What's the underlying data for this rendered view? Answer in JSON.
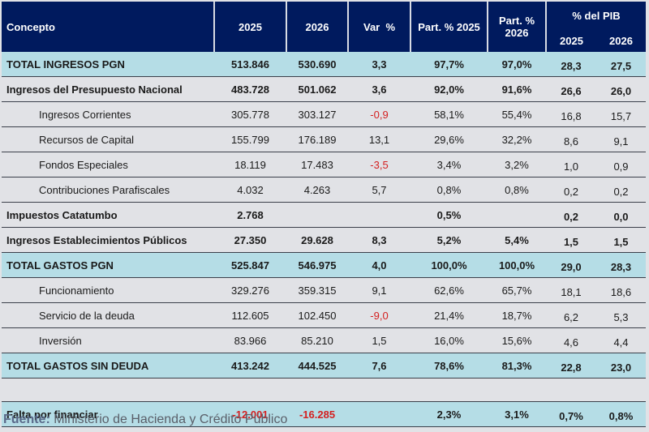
{
  "header": {
    "concept": "Concepto",
    "y2025": "2025",
    "y2026": "2026",
    "var": "Var  %",
    "part2025": "Part. % 2025",
    "part2026": "Part. % 2026",
    "pib": "% del PIB",
    "pib2025": "2025",
    "pib2026": "2026"
  },
  "rows": [
    {
      "concept": "TOTAL INGRESOS PGN",
      "v2025": "513.846",
      "v2026": "530.690",
      "var": "3,3",
      "p2025": "97,7%",
      "p2026": "97,0%",
      "pib2025": "28,3",
      "pib2026": "27,5"
    },
    {
      "concept": "Ingresos del Presupuesto Nacional",
      "v2025": "483.728",
      "v2026": "501.062",
      "var": "3,6",
      "p2025": "92,0%",
      "p2026": "91,6%",
      "pib2025": "26,6",
      "pib2026": "26,0"
    },
    {
      "concept": "Ingresos Corrientes",
      "v2025": "305.778",
      "v2026": "303.127",
      "var": "-0,9",
      "p2025": "58,1%",
      "p2026": "55,4%",
      "pib2025": "16,8",
      "pib2026": "15,7"
    },
    {
      "concept": "Recursos de Capital",
      "v2025": "155.799",
      "v2026": "176.189",
      "var": "13,1",
      "p2025": "29,6%",
      "p2026": "32,2%",
      "pib2025": "8,6",
      "pib2026": "9,1"
    },
    {
      "concept": "Fondos Especiales",
      "v2025": "18.119",
      "v2026": "17.483",
      "var": "-3,5",
      "p2025": "3,4%",
      "p2026": "3,2%",
      "pib2025": "1,0",
      "pib2026": "0,9"
    },
    {
      "concept": "Contribuciones Parafiscales",
      "v2025": "4.032",
      "v2026": "4.263",
      "var": "5,7",
      "p2025": "0,8%",
      "p2026": "0,8%",
      "pib2025": "0,2",
      "pib2026": "0,2"
    },
    {
      "concept": "Impuestos Catatumbo",
      "v2025": "2.768",
      "v2026": "",
      "var": "",
      "p2025": "0,5%",
      "p2026": "",
      "pib2025": "0,2",
      "pib2026": "0,0"
    },
    {
      "concept": "Ingresos Establecimientos Públicos",
      "v2025": "27.350",
      "v2026": "29.628",
      "var": "8,3",
      "p2025": "5,2%",
      "p2026": "5,4%",
      "pib2025": "1,5",
      "pib2026": "1,5"
    },
    {
      "concept": "TOTAL GASTOS PGN",
      "v2025": "525.847",
      "v2026": "546.975",
      "var": "4,0",
      "p2025": "100,0%",
      "p2026": "100,0%",
      "pib2025": "29,0",
      "pib2026": "28,3"
    },
    {
      "concept": "Funcionamiento",
      "v2025": "329.276",
      "v2026": "359.315",
      "var": "9,1",
      "p2025": "62,6%",
      "p2026": "65,7%",
      "pib2025": "18,1",
      "pib2026": "18,6"
    },
    {
      "concept": "Servicio de la deuda",
      "v2025": "112.605",
      "v2026": "102.450",
      "var": "-9,0",
      "p2025": "21,4%",
      "p2026": "18,7%",
      "pib2025": "6,2",
      "pib2026": "5,3"
    },
    {
      "concept": "Inversión",
      "v2025": "83.966",
      "v2026": "85.210",
      "var": "1,5",
      "p2025": "16,0%",
      "p2026": "15,6%",
      "pib2025": "4,6",
      "pib2026": "4,4"
    },
    {
      "concept": "TOTAL GASTOS SIN DEUDA",
      "v2025": "413.242",
      "v2026": "444.525",
      "var": "7,6",
      "p2025": "78,6%",
      "p2026": "81,3%",
      "pib2025": "22,8",
      "pib2026": "23,0"
    },
    {
      "concept": "Falta por financiar",
      "v2025": "-12.001",
      "v2026": "-16.285",
      "var": "",
      "p2025": "2,3%",
      "p2026": "3,1%",
      "pib2025": "0,7%",
      "pib2026": "0,8%"
    }
  ],
  "source": {
    "label": "Fuente:",
    "text": " Ministerio de Hacienda y Crédito Público"
  },
  "colors": {
    "header_bg": "#001a5e",
    "total_row_bg": "#b5dde6",
    "negative": "#d42020",
    "page_bg": "#e1e2e6"
  }
}
